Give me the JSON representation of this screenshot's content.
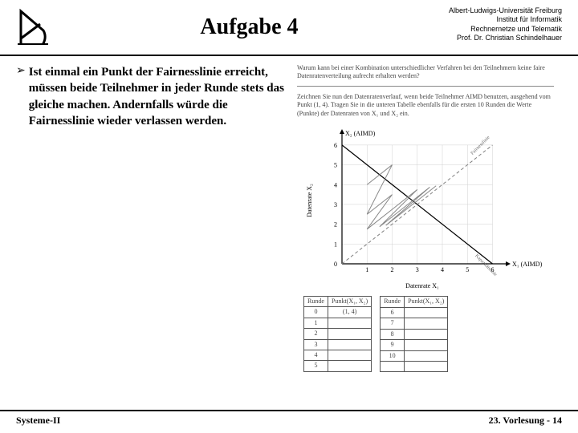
{
  "header": {
    "title": "Aufgabe 4",
    "affiliation": [
      "Albert-Ludwigs-Universität Freiburg",
      "Institut für Informatik",
      "Rechnernetze und Telematik",
      "Prof. Dr. Christian Schindelhauer"
    ]
  },
  "bullet": {
    "text": "Ist einmal ein Punkt der Fairnesslinie erreicht, müssen beide Teilnehmer in jeder Runde stets das gleiche machen. Andernfalls würde die Fairnesslinie wieder verlassen werden."
  },
  "right_panel": {
    "para1": "Warum kann bei einer Kombination unterschiedlicher Verfahren bei den Teilnehmern keine faire Datenratenverteilung aufrecht erhalten werden?",
    "para2": "Zeichnen Sie nun den Datenratenverlauf, wenn beide Teilnehmer AIMD benutzen, ausgehend vom Punkt (1, 4). Tragen Sie in die unteren Tabelle ebenfalls für die ersten 10 Runden die Werte (Punkte) der Datenraten von X₁ und X₂ ein."
  },
  "chart": {
    "y_label_top": "X₂ (AIMD)",
    "x_label_right": "X₁ (AIMD)",
    "y_axis_title": "Datenrate X₂",
    "x_axis_title": "Datenrate X₁",
    "ticks": [
      0,
      1,
      2,
      3,
      4,
      5,
      6
    ],
    "xlim": [
      0,
      6.4
    ],
    "ylim": [
      0,
      6.4
    ],
    "fairness_line": {
      "x1": 0,
      "y1": 0,
      "x2": 6,
      "y2": 6,
      "color": "#808080",
      "dash": "4,3"
    },
    "capacity_line": {
      "x1": 0,
      "y1": 6,
      "x2": 6,
      "y2": 0,
      "color": "#000000"
    },
    "trajectory": {
      "color": "#888888",
      "points": [
        [
          1,
          4
        ],
        [
          2,
          5
        ],
        [
          1,
          2.5
        ],
        [
          2,
          3.5
        ],
        [
          1,
          1.75
        ],
        [
          2,
          2.75
        ],
        [
          3,
          3.75
        ],
        [
          1.5,
          1.875
        ],
        [
          2.5,
          2.875
        ],
        [
          3.5,
          3.875
        ],
        [
          1.75,
          1.9375
        ],
        [
          2.75,
          2.9375
        ],
        [
          3.75,
          3.9375
        ]
      ]
    },
    "grid_color": "#d0d0d0",
    "background": "#ffffff"
  },
  "tables": {
    "left": {
      "headers": [
        "Runde",
        "Punkt(X₁, X₂)"
      ],
      "rows": [
        [
          "0",
          "(1, 4)"
        ],
        [
          "1",
          ""
        ],
        [
          "2",
          ""
        ],
        [
          "3",
          ""
        ],
        [
          "4",
          ""
        ],
        [
          "5",
          ""
        ]
      ]
    },
    "right": {
      "headers": [
        "Runde",
        "Punkt(X₁, X₂)"
      ],
      "rows": [
        [
          "6",
          ""
        ],
        [
          "7",
          ""
        ],
        [
          "8",
          ""
        ],
        [
          "9",
          ""
        ],
        [
          "10",
          ""
        ],
        [
          "",
          ""
        ]
      ]
    }
  },
  "footer": {
    "left": "Systeme-II",
    "right": "23. Vorlesung - 14"
  }
}
